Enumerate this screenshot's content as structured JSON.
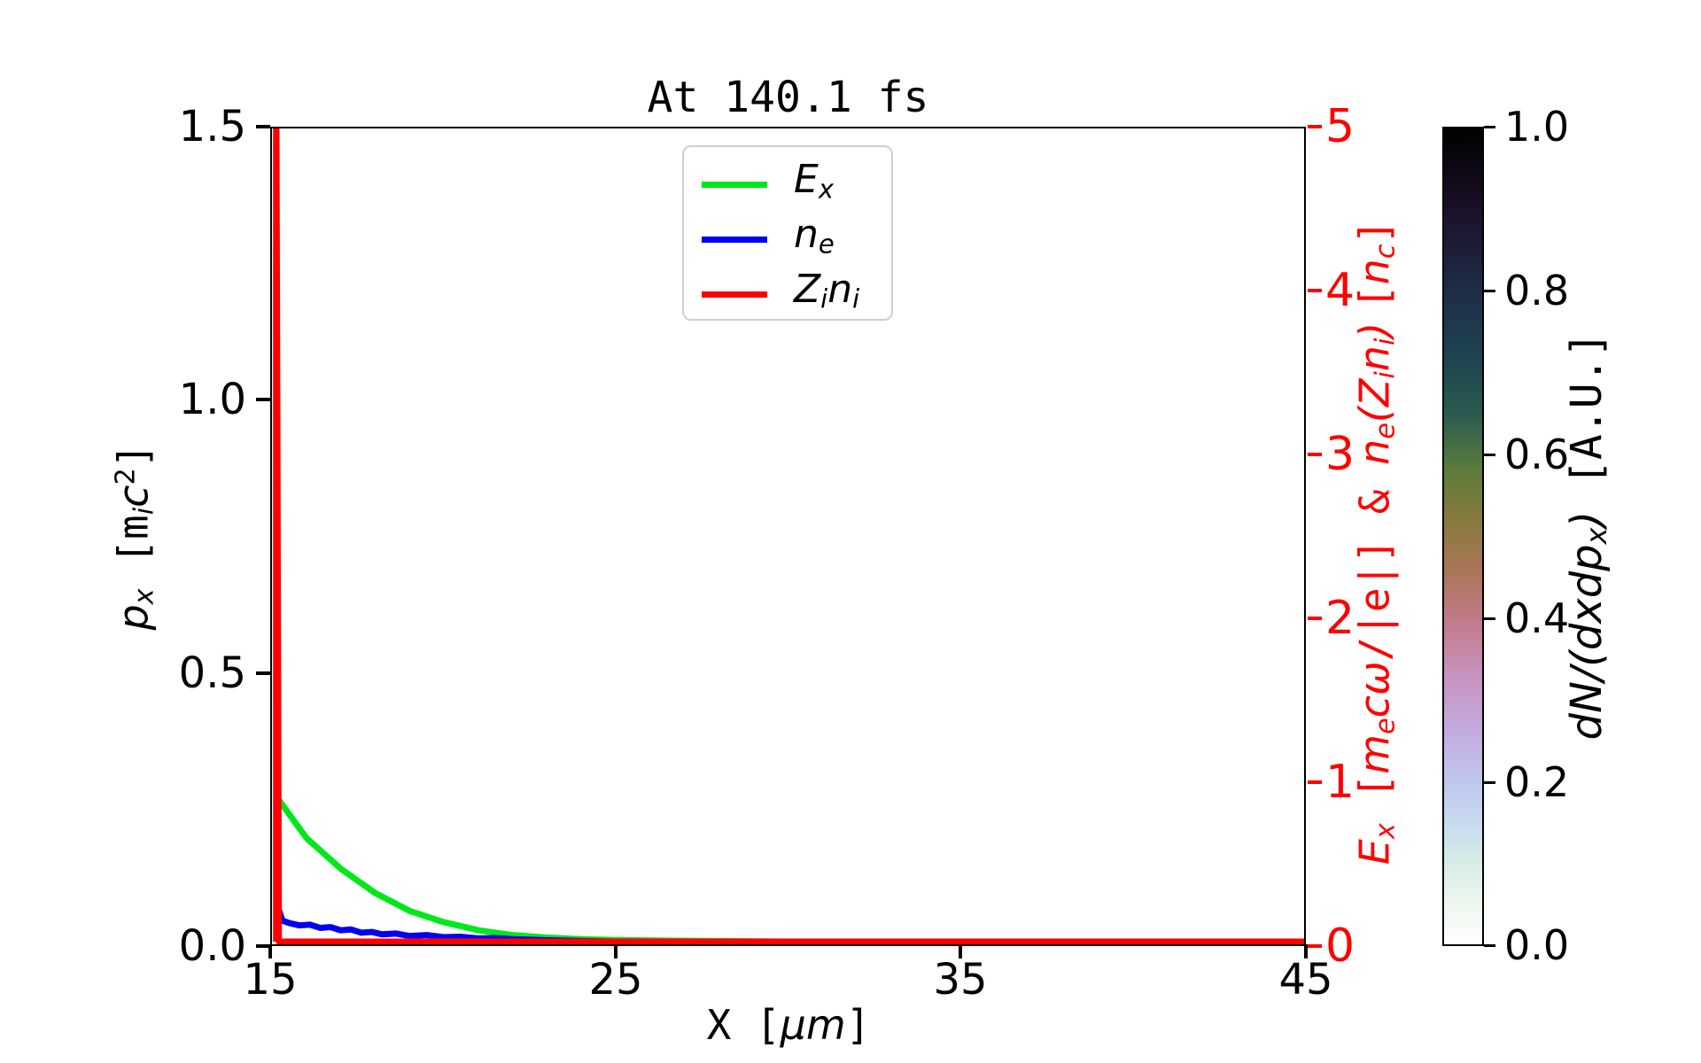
{
  "title": "At 140.1 fs",
  "bottom_axis": {
    "ticks": [
      "15",
      "25",
      "35",
      "45"
    ],
    "label": {
      "x": "X",
      "open": " [",
      "mu": "μm",
      "close": "]"
    }
  },
  "left_axis": {
    "ticks": [
      "1.5",
      "1.0",
      "0.5",
      "0.0"
    ],
    "label": {
      "p": "p",
      "p_sub": "x",
      "open": " [",
      "m": "m",
      "m_sub": "i",
      "c": "c",
      "sup": "2",
      "close": "]"
    }
  },
  "right_axis": {
    "color": "#ff0000",
    "ticks": [
      "5",
      "4",
      "3",
      "2",
      "1",
      "0"
    ],
    "label": {
      "E": "E",
      "E_sub": "x",
      "open": " [",
      "m": "m",
      "m_sub": "e",
      "cw": "cω",
      "mid": "/|e|] & ",
      "n1": "n",
      "n1_sub": "e",
      "popen": "(",
      "Z": "Z",
      "Z_sub": "i",
      "n2": "n",
      "n2_sub": "i",
      "pclose": ") ",
      "bopen": "[",
      "n3": "n",
      "n3_sub": "c",
      "bclose": "]"
    }
  },
  "colorbar": {
    "ticks": [
      "1.0",
      "0.8",
      "0.6",
      "0.4",
      "0.2",
      "0.0"
    ],
    "label": {
      "math": "dN/(dxdp",
      "sub": "x",
      "pclose": ")",
      "unit": " [A.U.]"
    }
  },
  "legend": {
    "items": [
      {
        "color": "#00e81c",
        "main": "E",
        "sub": "x",
        "main2": "",
        "sub2": ""
      },
      {
        "color": "#0000f0",
        "main": "n",
        "sub": "e",
        "main2": "",
        "sub2": ""
      },
      {
        "color": "#ff0000",
        "main": "Z",
        "sub": "i",
        "main2": "n",
        "sub2": "i"
      }
    ]
  },
  "chart_data": {
    "type": "line",
    "title": "At 140.1 fs",
    "xlabel": "X [μm]",
    "xlim": [
      15,
      45
    ],
    "xticks": [
      15,
      25,
      35,
      45
    ],
    "left_axis": {
      "label": "p_x [m_i c^2]",
      "ylim": [
        0,
        1.5
      ],
      "yticks": [
        0.0,
        0.5,
        1.0,
        1.5
      ]
    },
    "right_axis": {
      "label": "E_x [m_e cω/|e|] & n_e(Z_i n_i) [n_c]",
      "ylim": [
        0,
        5
      ],
      "yticks": [
        0,
        1,
        2,
        3,
        4,
        5
      ],
      "color": "#ff0000"
    },
    "colorbar": {
      "label": "dN/(dxdp_x) [A.U.]",
      "range": [
        0.0,
        1.0
      ],
      "ticks": [
        0.0,
        0.2,
        0.4,
        0.6,
        0.8,
        1.0
      ],
      "colormap": "cubehelix reversed (0=white, 1=black)",
      "field_note": "2D momentum-space histogram is ~0 (white) everywhere visible"
    },
    "grid": false,
    "legend_position": "upper center",
    "series": [
      {
        "name": "E_x",
        "color": "#00e81c",
        "axis": "right",
        "x": [
          15.18,
          16,
          17,
          18,
          19,
          20,
          21,
          22,
          23,
          24,
          25,
          27,
          30,
          35,
          40,
          45
        ],
        "y": [
          0.88,
          0.64,
          0.45,
          0.3,
          0.19,
          0.12,
          0.07,
          0.04,
          0.025,
          0.015,
          0.01,
          0.005,
          0,
          0,
          0,
          0
        ]
      },
      {
        "name": "n_e",
        "color": "#0000f0",
        "axis": "right",
        "x": [
          15.14,
          15.18,
          15.3,
          15.5,
          15.8,
          16.1,
          16.4,
          16.7,
          17.0,
          17.3,
          17.6,
          17.9,
          18.2,
          18.6,
          19.0,
          19.5,
          20.0,
          20.5,
          21.0,
          21.5,
          22.0,
          23,
          24,
          25,
          45
        ],
        "y": [
          0,
          0.21,
          0.13,
          0.115,
          0.1,
          0.105,
          0.085,
          0.09,
          0.07,
          0.075,
          0.055,
          0.06,
          0.045,
          0.05,
          0.035,
          0.04,
          0.028,
          0.03,
          0.02,
          0.022,
          0.015,
          0.008,
          0.004,
          0,
          0
        ]
      },
      {
        "name": "Z_i n_i",
        "color": "#ff0000",
        "axis": "right",
        "x": [
          15.12,
          15.12,
          15.2,
          45
        ],
        "y": [
          0,
          5.6,
          0,
          0
        ],
        "note": "narrow ion-density spike at x≈15.1 μm exceeding axis top (clipped at 5)"
      }
    ]
  }
}
